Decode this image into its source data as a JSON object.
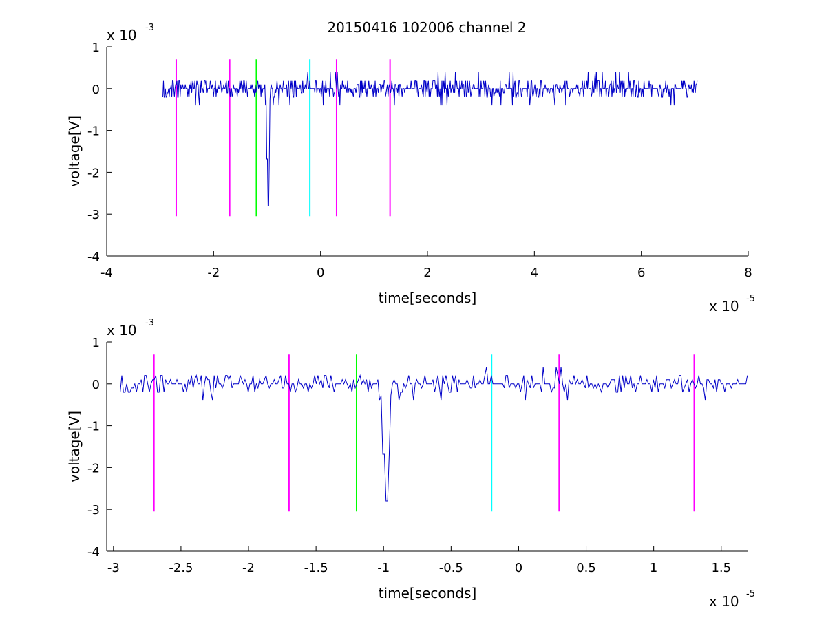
{
  "title": "20150416 102006 channel 2",
  "colors": {
    "signal": "#0000c8",
    "magenta": "#ff00ff",
    "green": "#00ff00",
    "cyan": "#00ffff",
    "axes": "#000000",
    "background": "#ffffff"
  },
  "chart_data": [
    {
      "type": "line",
      "title": "20150416 102006 channel 2",
      "xlabel": "time[seconds]",
      "ylabel": "voltage[V]",
      "x_multiplier": "x 10",
      "x_exponent": "-5",
      "y_multiplier": "x 10",
      "y_exponent": "-3",
      "xlim": [
        -4,
        8
      ],
      "ylim": [
        -4,
        1
      ],
      "xticks": [
        -4,
        -2,
        0,
        2,
        4,
        6,
        8
      ],
      "xtick_labels": [
        "-4",
        "-2",
        "0",
        "2",
        "4",
        "6",
        "8"
      ],
      "yticks": [
        -4,
        -3,
        -2,
        -1,
        0,
        1
      ],
      "ytick_labels": [
        "-4",
        "-3",
        "-2",
        "-1",
        "0",
        "1"
      ],
      "grid": false,
      "legend": "none",
      "signal": {
        "x_start": -2.95,
        "x_end": 7.05,
        "noise_amplitude": 0.2,
        "spike": {
          "x": -0.98,
          "min": -2.8
        }
      },
      "markers": [
        {
          "x": -2.7,
          "y_top": 0.7,
          "y_bottom": -3.05,
          "color": "magenta"
        },
        {
          "x": -1.7,
          "y_top": 0.7,
          "y_bottom": -3.05,
          "color": "magenta"
        },
        {
          "x": -1.2,
          "y_top": 0.7,
          "y_bottom": -3.05,
          "color": "green"
        },
        {
          "x": -0.2,
          "y_top": 0.7,
          "y_bottom": -3.05,
          "color": "cyan"
        },
        {
          "x": 0.3,
          "y_top": 0.7,
          "y_bottom": -3.05,
          "color": "magenta"
        },
        {
          "x": 1.3,
          "y_top": 0.7,
          "y_bottom": -3.05,
          "color": "magenta"
        }
      ]
    },
    {
      "type": "line",
      "xlabel": "time[seconds]",
      "ylabel": "voltage[V]",
      "x_multiplier": "x 10",
      "x_exponent": "-5",
      "y_multiplier": "x 10",
      "y_exponent": "-3",
      "xlim": [
        -3.05,
        1.7
      ],
      "ylim": [
        -4,
        1
      ],
      "xticks": [
        -3,
        -2.5,
        -2,
        -1.5,
        -1,
        -0.5,
        0,
        0.5,
        1,
        1.5
      ],
      "xtick_labels": [
        "-3",
        "-2.5",
        "-2",
        "-1.5",
        "-1",
        "-0.5",
        "0",
        "0.5",
        "1",
        "1.5"
      ],
      "yticks": [
        -4,
        -3,
        -2,
        -1,
        0,
        1
      ],
      "ytick_labels": [
        "-4",
        "-3",
        "-2",
        "-1",
        "0",
        "1"
      ],
      "grid": false,
      "legend": "none",
      "signal": {
        "x_start": -2.95,
        "x_end": 1.7,
        "noise_amplitude": 0.2,
        "spike": {
          "x": -0.98,
          "min": -2.8
        }
      },
      "markers": [
        {
          "x": -2.7,
          "y_top": 0.7,
          "y_bottom": -3.05,
          "color": "magenta"
        },
        {
          "x": -1.7,
          "y_top": 0.7,
          "y_bottom": -3.05,
          "color": "magenta"
        },
        {
          "x": -1.2,
          "y_top": 0.7,
          "y_bottom": -3.05,
          "color": "green"
        },
        {
          "x": -0.2,
          "y_top": 0.7,
          "y_bottom": -3.05,
          "color": "cyan"
        },
        {
          "x": 0.3,
          "y_top": 0.7,
          "y_bottom": -3.05,
          "color": "magenta"
        },
        {
          "x": 1.3,
          "y_top": 0.7,
          "y_bottom": -3.05,
          "color": "magenta"
        }
      ]
    }
  ]
}
